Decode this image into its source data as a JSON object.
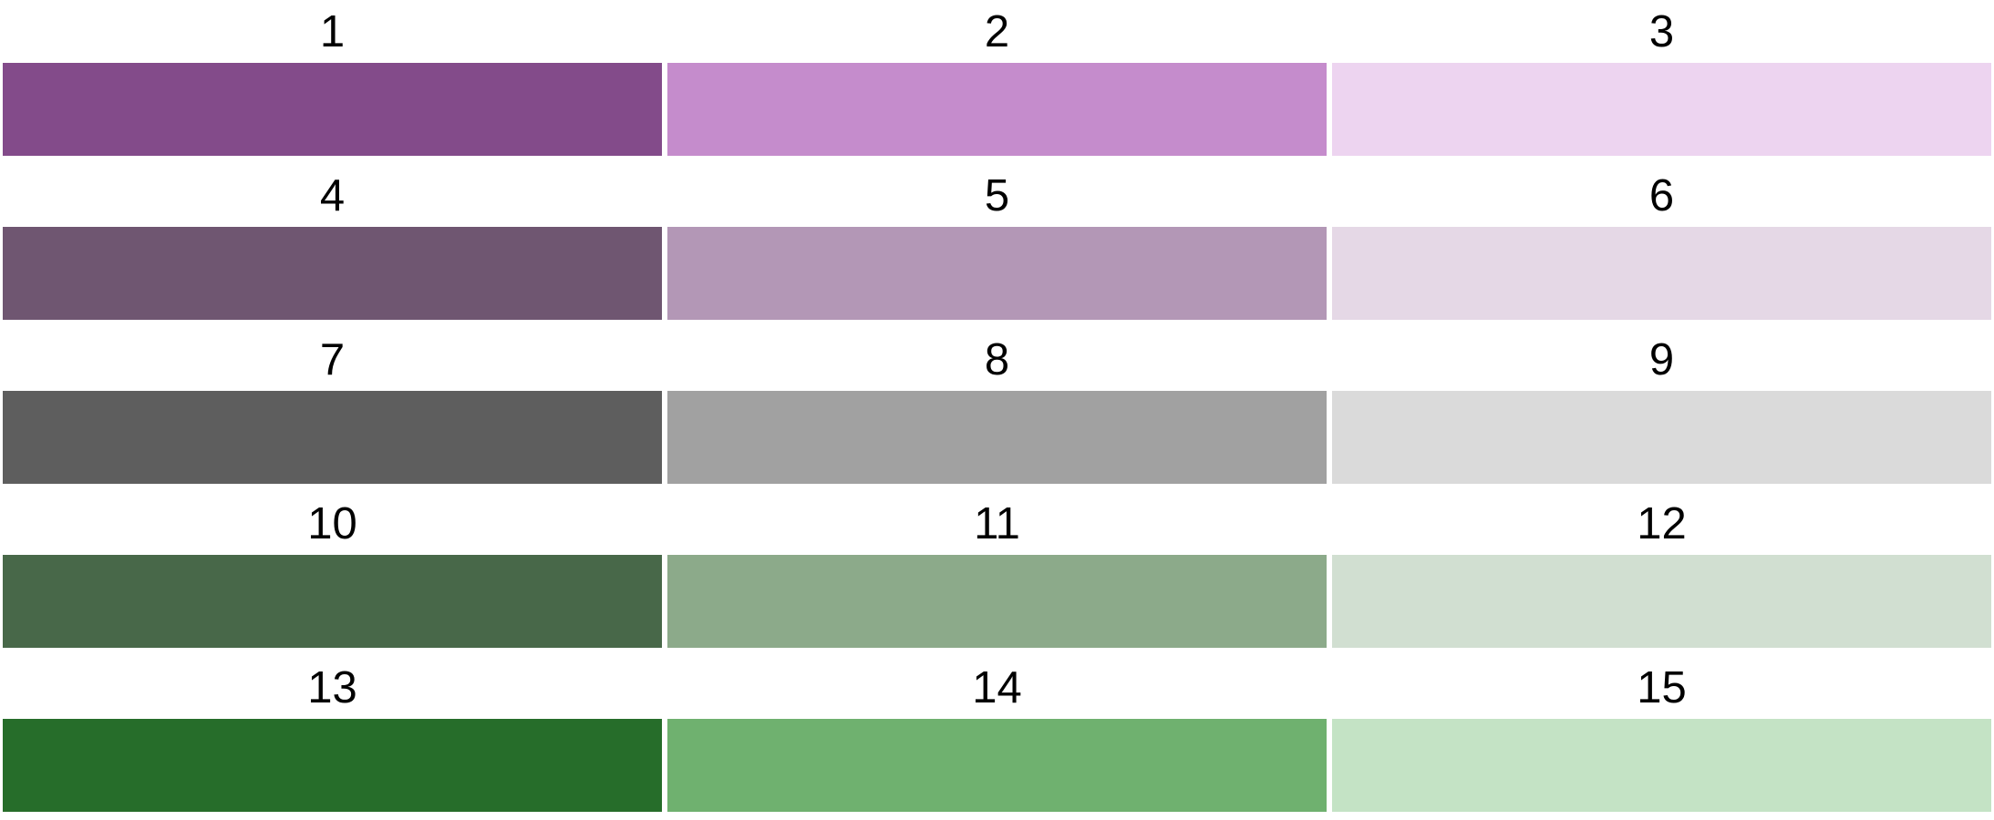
{
  "swatches": [
    {
      "label": "1",
      "color": "#834B8A"
    },
    {
      "label": "2",
      "color": "#C58CCC"
    },
    {
      "label": "3",
      "color": "#EDD4F0"
    },
    {
      "label": "4",
      "color": "#6F5671"
    },
    {
      "label": "5",
      "color": "#B397B6"
    },
    {
      "label": "6",
      "color": "#E5D8E6"
    },
    {
      "label": "7",
      "color": "#5E5E5E"
    },
    {
      "label": "8",
      "color": "#A1A1A1"
    },
    {
      "label": "9",
      "color": "#DADADA"
    },
    {
      "label": "10",
      "color": "#486849"
    },
    {
      "label": "11",
      "color": "#8CAA8A"
    },
    {
      "label": "12",
      "color": "#D1DFD1"
    },
    {
      "label": "13",
      "color": "#266D2A"
    },
    {
      "label": "14",
      "color": "#6FB16F"
    },
    {
      "label": "15",
      "color": "#C4E3C5"
    }
  ]
}
